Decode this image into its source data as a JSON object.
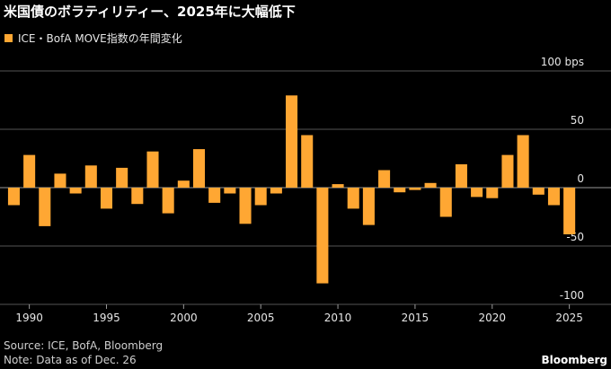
{
  "chart_data": {
    "type": "bar",
    "title": "米国債のボラティリティー、2025年に大幅低下",
    "series": [
      {
        "name": "ICE・BofA MOVE指数の年間変化",
        "color": "#ffa733",
        "values": [
          -15,
          28,
          -33,
          12,
          -5,
          19,
          -18,
          17,
          -14,
          31,
          -22,
          6,
          33,
          -13,
          -5,
          -31,
          -15,
          -5,
          79,
          45,
          -82,
          3,
          -18,
          -32,
          15,
          -4,
          -2,
          4,
          -25,
          20,
          -8,
          -9,
          28,
          45,
          -6,
          -15,
          -40
        ]
      }
    ],
    "x": [
      1989,
      1990,
      1991,
      1992,
      1993,
      1994,
      1995,
      1996,
      1997,
      1998,
      1999,
      2000,
      2001,
      2002,
      2003,
      2004,
      2005,
      2006,
      2007,
      2008,
      2009,
      2010,
      2011,
      2012,
      2013,
      2014,
      2015,
      2016,
      2017,
      2018,
      2019,
      2020,
      2021,
      2022,
      2023,
      2024,
      2025
    ],
    "xlim": [
      1988.1,
      2027.7
    ],
    "xticks": [
      1990,
      1995,
      2000,
      2005,
      2010,
      2015,
      2020,
      2025
    ],
    "ylim": [
      -100,
      100
    ],
    "yticks": [
      {
        "value": 100,
        "label": "100 bps"
      },
      50,
      0,
      -50,
      -100
    ],
    "grid": true,
    "source": "Source: ICE, BofA, Bloomberg",
    "note": "Note: Data as of Dec. 26",
    "brand": "Bloomberg"
  }
}
